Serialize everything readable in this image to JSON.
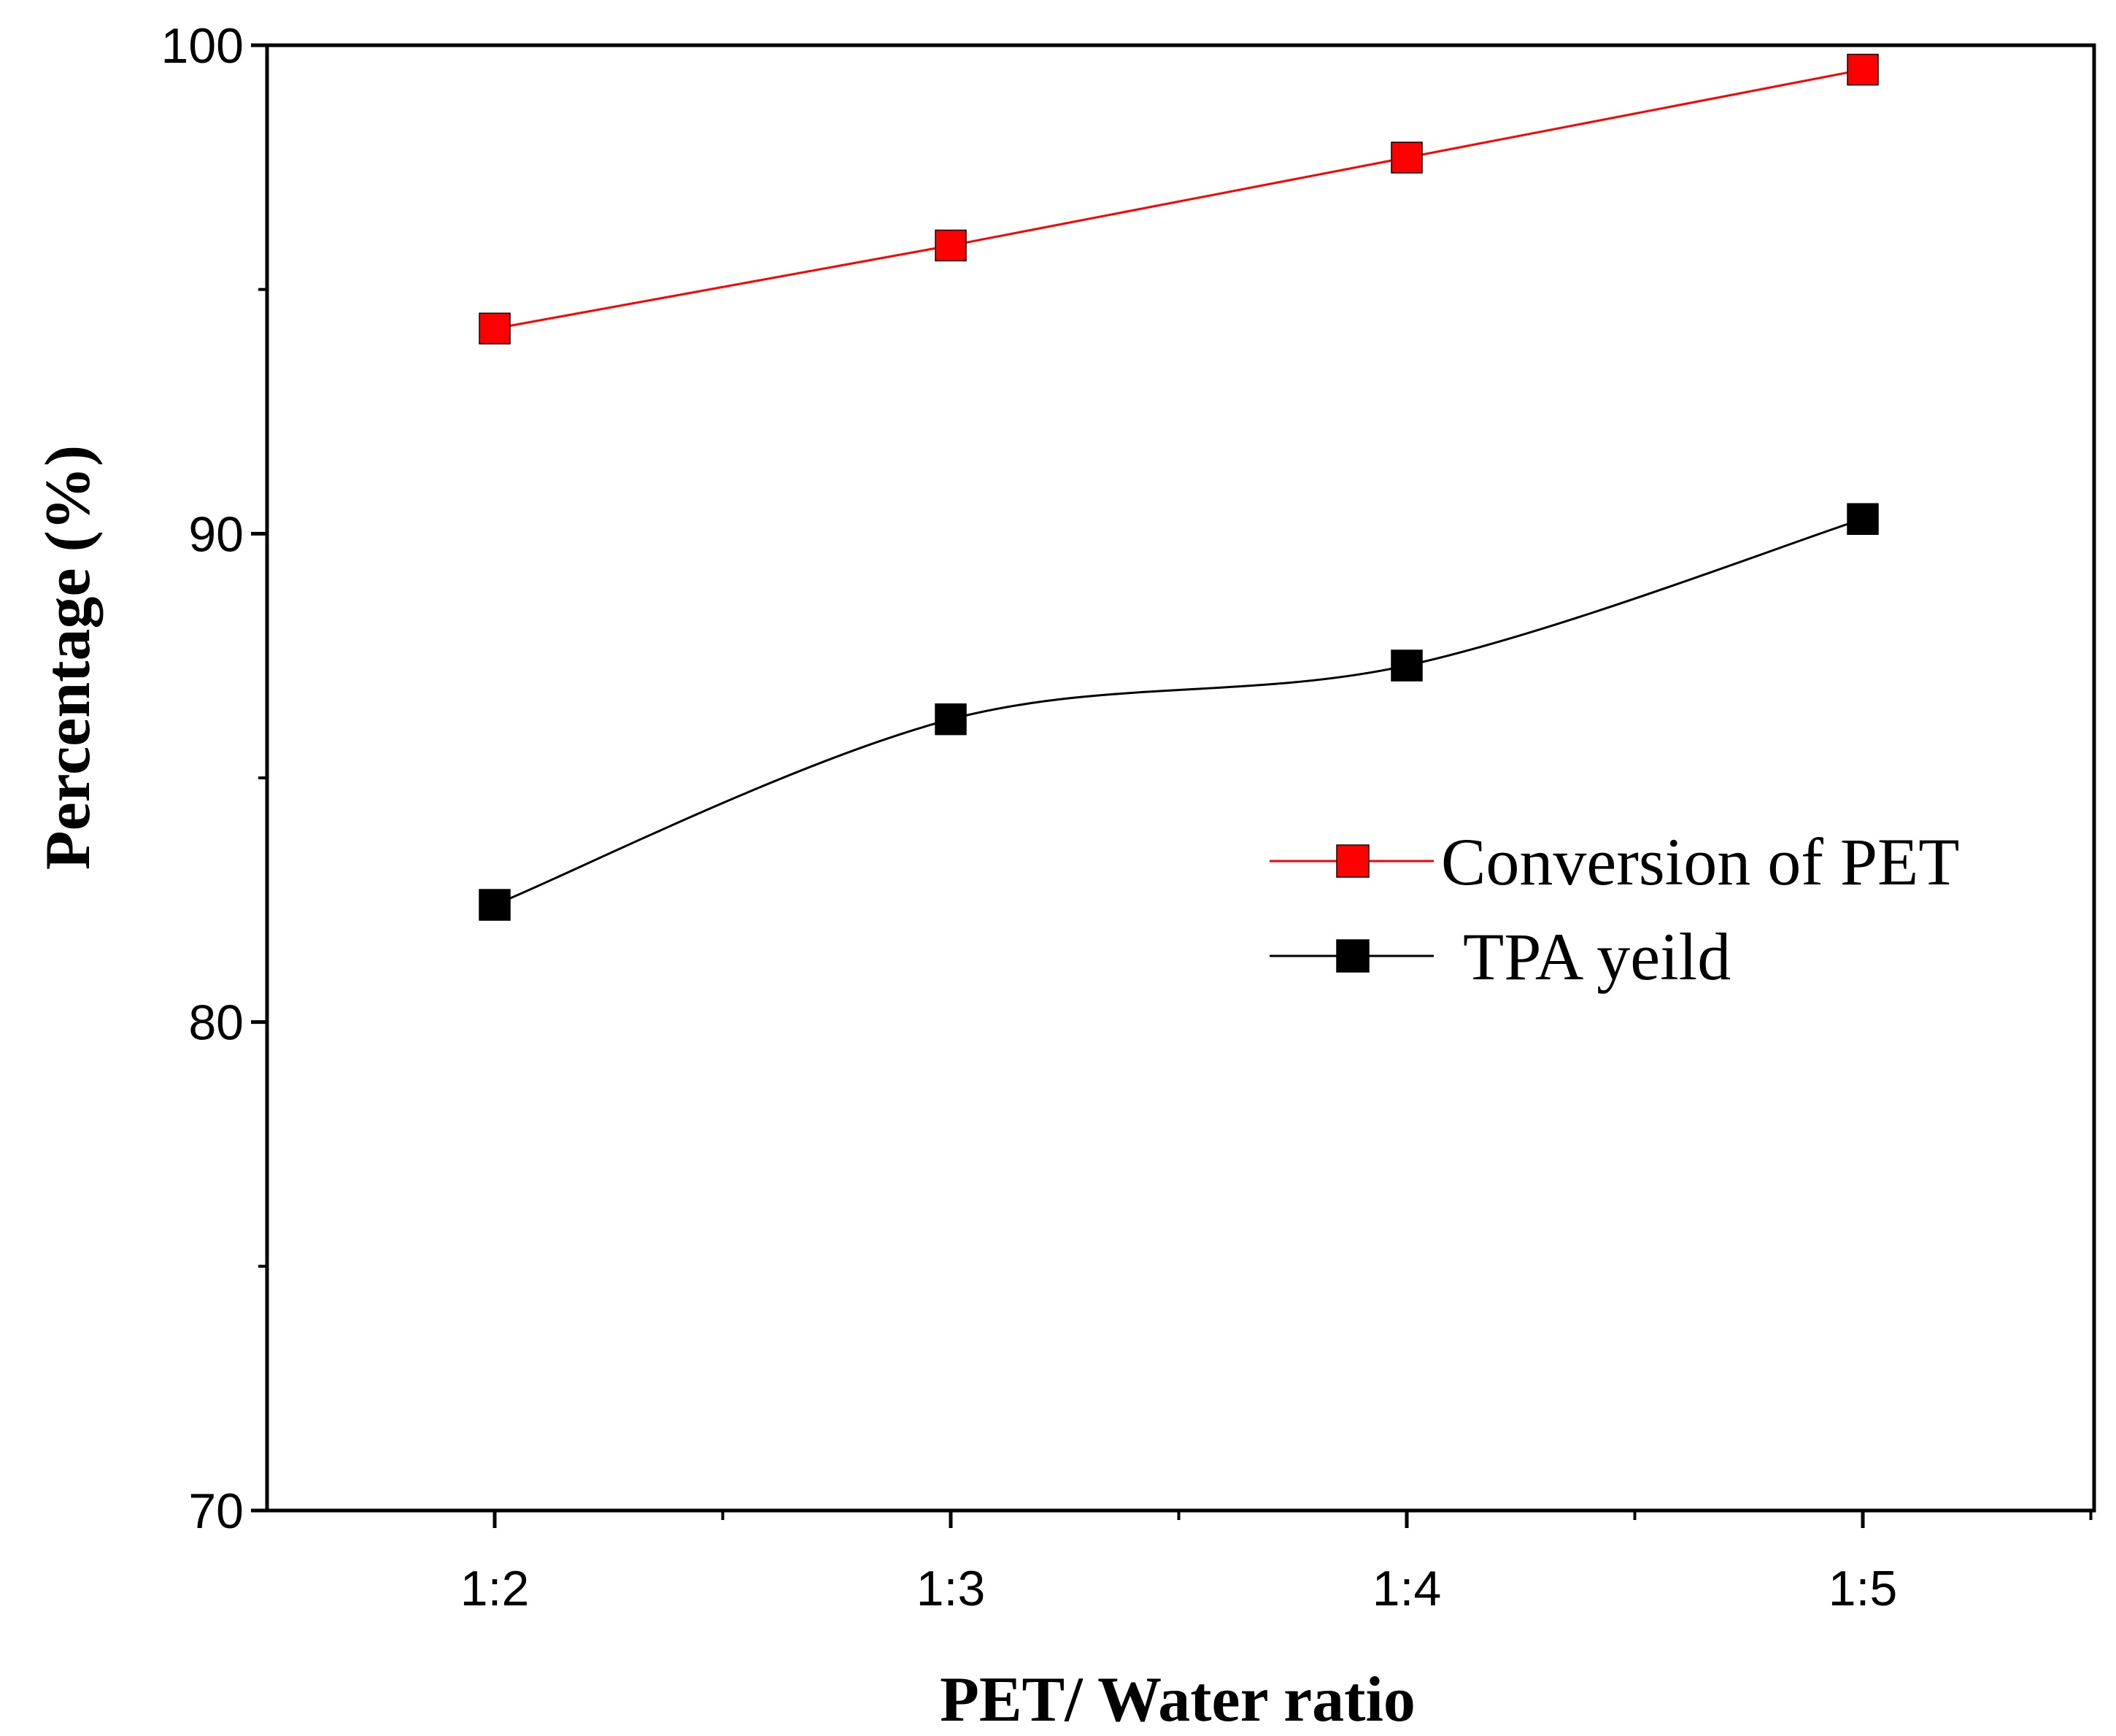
{
  "chart_data": {
    "type": "line",
    "title": "",
    "xlabel": "PET/ Water ratio",
    "ylabel": "Percentage (%)",
    "categories": [
      "1:2",
      "1:3",
      "1:4",
      "1:5"
    ],
    "ylim": [
      70,
      100
    ],
    "yticks": [
      70,
      80,
      90,
      100
    ],
    "y_minor_step": 5,
    "grid": false,
    "legend_position": "center-right",
    "series": [
      {
        "name": "Conversion of PET",
        "color": "#ff0000",
        "values": [
          94.2,
          95.9,
          97.7,
          99.5
        ],
        "smooth": false
      },
      {
        "name": "TPA yeild",
        "color": "#000000",
        "values": [
          82.4,
          86.2,
          87.3,
          90.3
        ],
        "smooth": true
      }
    ]
  }
}
